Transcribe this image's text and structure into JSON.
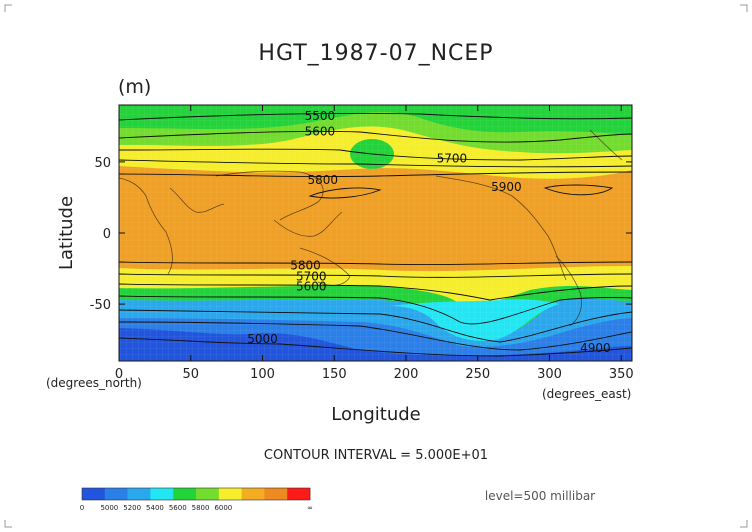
{
  "chart_data": {
    "type": "heatmap",
    "title": "HGT_1987-07_NCEP",
    "unit_label": "(m)",
    "xlabel": "Longitude",
    "ylabel": "Latitude",
    "x_unit_note": "(degrees_east)",
    "y_unit_note": "(degrees_north)",
    "xlim": [
      0,
      357.5
    ],
    "ylim": [
      -90,
      90
    ],
    "x_ticks": [
      0,
      50,
      100,
      150,
      200,
      250,
      300,
      350
    ],
    "y_ticks": [
      50,
      0,
      -50
    ],
    "contour_note": "CONTOUR INTERVAL = 5.000E+01",
    "level_note": "level=500 millibar",
    "colorbar": {
      "colors": [
        "#2255dd",
        "#2a7fe8",
        "#2aa8ee",
        "#22e6f4",
        "#22d43a",
        "#72dd2c",
        "#f6ee2a",
        "#f4ad22",
        "#ee8a22",
        "#ff1a1a"
      ],
      "labels": [
        "0",
        "5000",
        "5200",
        "5400",
        "5600",
        "5800",
        "6000",
        "∞"
      ]
    },
    "contour_labels": [
      {
        "text": "5500",
        "lon": 140,
        "lat": 83
      },
      {
        "text": "5600",
        "lon": 140,
        "lat": 72
      },
      {
        "text": "5700",
        "lon": 232,
        "lat": 53
      },
      {
        "text": "5800",
        "lon": 142,
        "lat": 38
      },
      {
        "text": "5900",
        "lon": 270,
        "lat": 33
      },
      {
        "text": "5800",
        "lon": 130,
        "lat": -22
      },
      {
        "text": "5700",
        "lon": 134,
        "lat": -30
      },
      {
        "text": "5600",
        "lon": 134,
        "lat": -37
      },
      {
        "text": "5000",
        "lon": 100,
        "lat": -74
      },
      {
        "text": "4900",
        "lon": 332,
        "lat": -80
      }
    ]
  }
}
